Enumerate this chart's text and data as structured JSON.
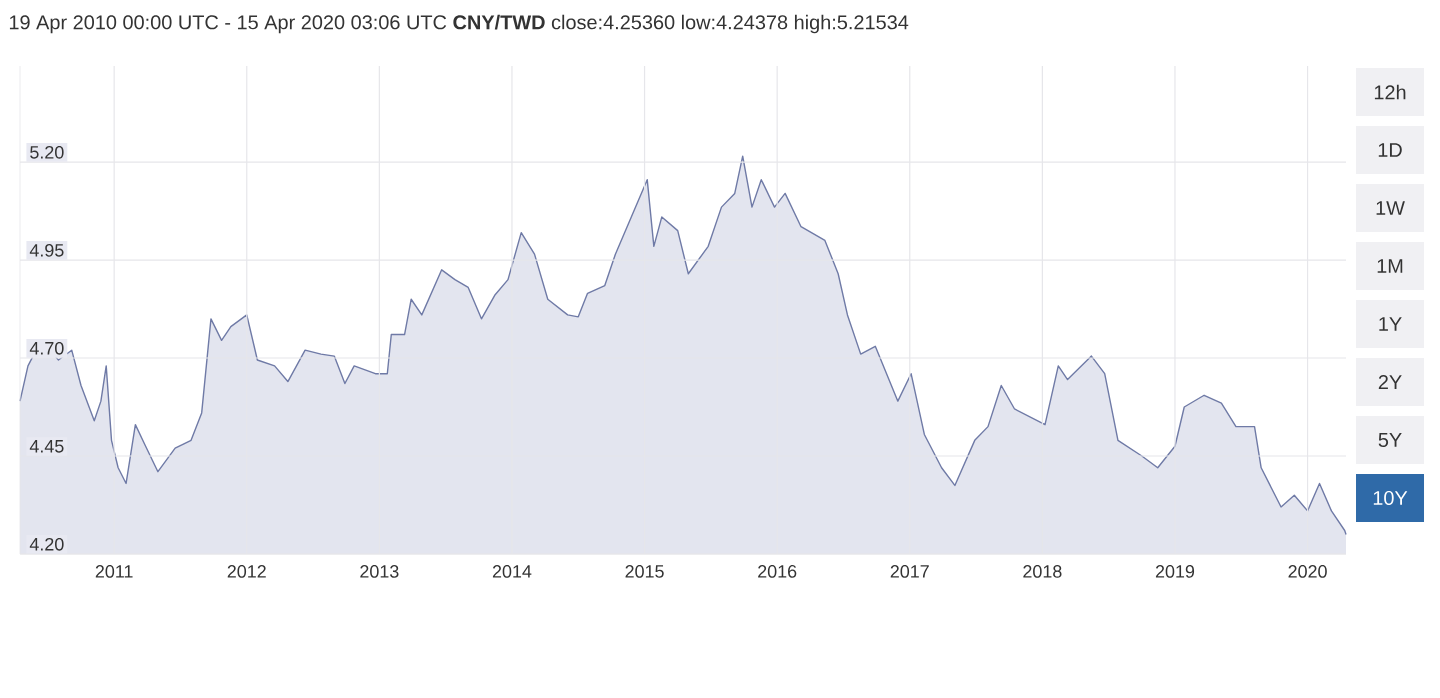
{
  "chart_data": {
    "type": "area",
    "title": "19 Apr 2010 00:00 UTC - 15 Apr 2020 03:06 UTC  **CNY/TWD** close:4.25360 low:4.24378 high:5.21534",
    "x": [
      2010.29,
      2010.35,
      2010.45,
      2010.58,
      2010.68,
      2010.75,
      2010.85,
      2010.9,
      2010.94,
      2010.98,
      2011.03,
      2011.09,
      2011.16,
      2011.23,
      2011.33,
      2011.46,
      2011.58,
      2011.66,
      2011.73,
      2011.81,
      2011.88,
      2012.0,
      2012.08,
      2012.21,
      2012.31,
      2012.44,
      2012.56,
      2012.66,
      2012.74,
      2012.81,
      2012.97,
      2013.06,
      2013.09,
      2013.19,
      2013.24,
      2013.32,
      2013.47,
      2013.57,
      2013.67,
      2013.77,
      2013.87,
      2013.97,
      2014.07,
      2014.17,
      2014.27,
      2014.42,
      2014.5,
      2014.57,
      2014.7,
      2014.78,
      2014.9,
      2015.02,
      2015.07,
      2015.13,
      2015.25,
      2015.33,
      2015.48,
      2015.58,
      2015.68,
      2015.74,
      2015.81,
      2015.88,
      2015.98,
      2016.06,
      2016.18,
      2016.36,
      2016.46,
      2016.53,
      2016.63,
      2016.74,
      2016.91,
      2017.01,
      2017.11,
      2017.24,
      2017.34,
      2017.49,
      2017.59,
      2017.69,
      2017.79,
      2018.02,
      2018.12,
      2018.19,
      2018.37,
      2018.47,
      2018.57,
      2018.75,
      2018.87,
      2019.0,
      2019.07,
      2019.22,
      2019.35,
      2019.46,
      2019.6,
      2019.65,
      2019.8,
      2019.9,
      2020.0,
      2020.09,
      2020.18,
      2020.28,
      2020.29
    ],
    "series": [
      {
        "color": "#6f7aa6",
        "values": [
          4.59,
          4.68,
          4.745,
          4.695,
          4.72,
          4.63,
          4.54,
          4.59,
          4.68,
          4.49,
          4.42,
          4.38,
          4.53,
          4.48,
          4.41,
          4.47,
          4.49,
          4.56,
          4.8,
          4.745,
          4.78,
          4.81,
          4.695,
          4.68,
          4.64,
          4.72,
          4.71,
          4.705,
          4.635,
          4.68,
          4.66,
          4.66,
          4.76,
          4.76,
          4.85,
          4.81,
          4.925,
          4.9,
          4.88,
          4.8,
          4.86,
          4.9,
          5.02,
          4.965,
          4.85,
          4.81,
          4.805,
          4.865,
          4.885,
          4.965,
          5.06,
          5.155,
          4.985,
          5.06,
          5.025,
          4.915,
          4.985,
          5.085,
          5.12,
          5.215,
          5.085,
          5.155,
          5.085,
          5.12,
          5.035,
          5.0,
          4.915,
          4.81,
          4.71,
          4.73,
          4.59,
          4.66,
          4.505,
          4.42,
          4.375,
          4.49,
          4.525,
          4.63,
          4.57,
          4.53,
          4.68,
          4.645,
          4.705,
          4.66,
          4.49,
          4.45,
          4.42,
          4.475,
          4.575,
          4.605,
          4.585,
          4.525,
          4.525,
          4.42,
          4.32,
          4.35,
          4.31,
          4.38,
          4.31,
          4.26,
          4.25
        ]
      }
    ],
    "xlim": [
      2010.29,
      2020.29
    ],
    "xticks": [
      2011,
      2012,
      2013,
      2014,
      2015,
      2016,
      2017,
      2018,
      2019,
      2020
    ],
    "ylim": [
      4.2,
      5.445
    ],
    "yticks": [
      {
        "value": 4.2,
        "label": "4.20"
      },
      {
        "value": 4.45,
        "label": "4.45"
      },
      {
        "value": 4.7,
        "label": "4.70"
      },
      {
        "value": 4.95,
        "label": "4.95"
      },
      {
        "value": 5.2,
        "label": "5.20"
      }
    ],
    "grid": true,
    "annotations": [
      "12h",
      "1D",
      "1W",
      "1M",
      "1Y",
      "2Y",
      "5Y",
      "10Y"
    ]
  }
}
